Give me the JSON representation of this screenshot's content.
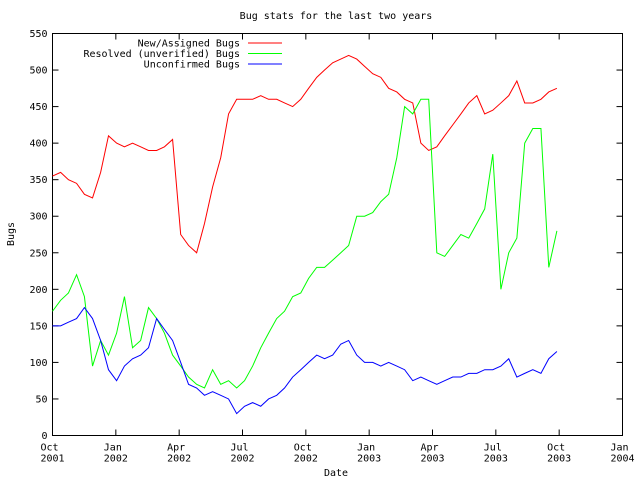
{
  "chart_data": {
    "type": "line",
    "title": "Bug stats for the last two years",
    "x_label": "Date",
    "y_label": "Bugs",
    "legend": "top-left",
    "xlim": [
      2001.75,
      2004.0
    ],
    "xticks": [
      {
        "value": 2001.75,
        "label": "Oct 2001"
      },
      {
        "value": 2002.0,
        "label": "Jan 2002"
      },
      {
        "value": 2002.25,
        "label": "Apr 2002"
      },
      {
        "value": 2002.5,
        "label": "Jul 2002"
      },
      {
        "value": 2002.75,
        "label": "Oct 2002"
      },
      {
        "value": 2003.0,
        "label": "Jan 2003"
      },
      {
        "value": 2003.25,
        "label": "Apr 2003"
      },
      {
        "value": 2003.5,
        "label": "Jul 2003"
      },
      {
        "value": 2003.75,
        "label": "Oct 2003"
      },
      {
        "value": 2004.0,
        "label": "Jan 2004"
      }
    ],
    "ylim": [
      0,
      550
    ],
    "yticks": [
      0,
      50,
      100,
      150,
      200,
      250,
      300,
      350,
      400,
      450,
      500,
      550
    ],
    "x": [
      2001.75,
      2001.782,
      2001.813,
      2001.845,
      2001.876,
      2001.908,
      2001.94,
      2001.971,
      2002.003,
      2002.034,
      2002.066,
      2002.098,
      2002.129,
      2002.161,
      2002.192,
      2002.224,
      2002.256,
      2002.287,
      2002.319,
      2002.35,
      2002.382,
      2002.414,
      2002.445,
      2002.477,
      2002.508,
      2002.54,
      2002.572,
      2002.603,
      2002.635,
      2002.666,
      2002.698,
      2002.73,
      2002.761,
      2002.793,
      2002.824,
      2002.856,
      2002.888,
      2002.919,
      2002.951,
      2002.982,
      2003.014,
      2003.046,
      2003.077,
      2003.109,
      2003.14,
      2003.172,
      2003.204,
      2003.235,
      2003.267,
      2003.298,
      2003.33,
      2003.362,
      2003.393,
      2003.425,
      2003.456,
      2003.488,
      2003.52,
      2003.551,
      2003.583,
      2003.614,
      2003.646,
      2003.678,
      2003.709,
      2003.741
    ],
    "series": [
      {
        "name": "New/Assigned Bugs",
        "color": "#ff0000",
        "values": [
          355,
          360,
          350,
          345,
          330,
          325,
          360,
          410,
          400,
          395,
          400,
          395,
          390,
          390,
          395,
          405,
          275,
          260,
          250,
          290,
          340,
          380,
          440,
          460,
          460,
          460,
          465,
          460,
          460,
          455,
          450,
          460,
          475,
          490,
          500,
          510,
          515,
          520,
          515,
          505,
          495,
          490,
          475,
          470,
          460,
          455,
          400,
          390,
          395,
          410,
          425,
          440,
          455,
          465,
          440,
          445,
          455,
          465,
          485,
          455,
          455,
          460,
          470,
          475
        ]
      },
      {
        "name": "Resolved (unverified) Bugs",
        "color": "#00ff00",
        "values": [
          170,
          185,
          195,
          220,
          190,
          95,
          130,
          110,
          140,
          190,
          120,
          130,
          175,
          160,
          140,
          110,
          95,
          80,
          70,
          65,
          90,
          70,
          75,
          65,
          75,
          95,
          120,
          140,
          160,
          170,
          190,
          195,
          215,
          230,
          230,
          240,
          250,
          260,
          300,
          300,
          305,
          320,
          330,
          380,
          450,
          440,
          460,
          460,
          250,
          245,
          260,
          275,
          270,
          290,
          310,
          385,
          200,
          250,
          270,
          400,
          420,
          420,
          230,
          280
        ]
      },
      {
        "name": "Unconfirmed Bugs",
        "color": "#0000ff",
        "values": [
          150,
          150,
          155,
          160,
          175,
          160,
          130,
          90,
          75,
          95,
          105,
          110,
          120,
          160,
          145,
          130,
          100,
          70,
          65,
          55,
          60,
          55,
          50,
          30,
          40,
          45,
          40,
          50,
          55,
          65,
          80,
          90,
          100,
          110,
          105,
          110,
          125,
          130,
          110,
          100,
          100,
          95,
          100,
          95,
          90,
          75,
          80,
          75,
          70,
          75,
          80,
          80,
          85,
          85,
          90,
          90,
          95,
          105,
          80,
          85,
          90,
          85,
          105,
          115
        ]
      }
    ]
  }
}
